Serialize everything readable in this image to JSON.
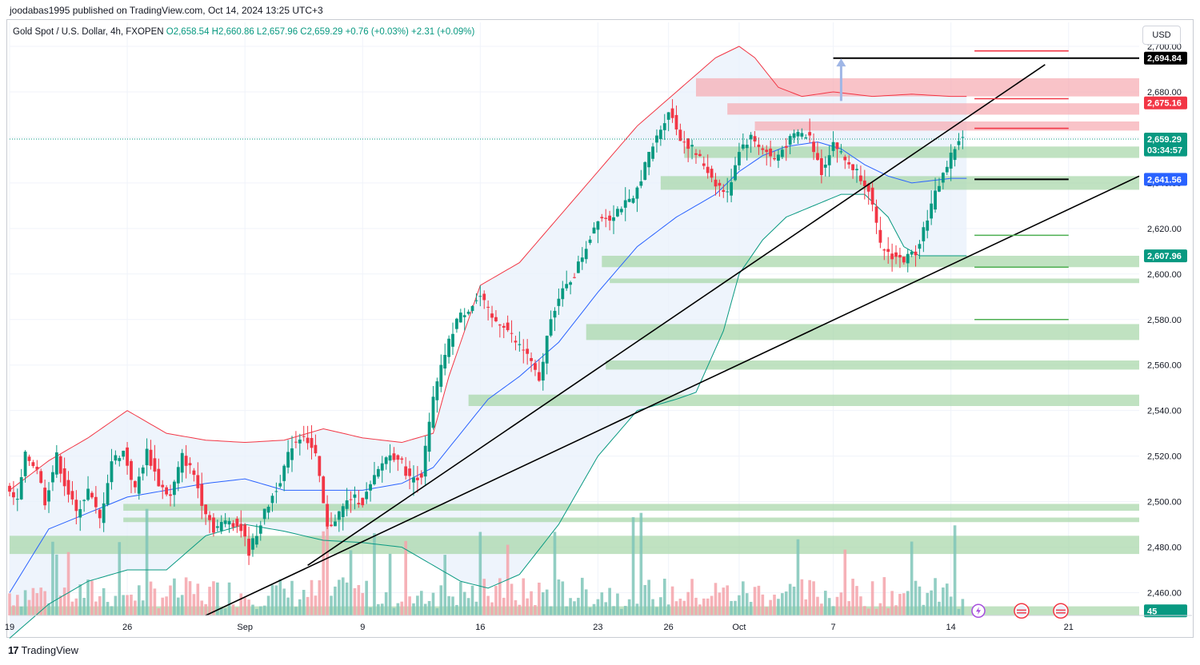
{
  "header": {
    "published_by": "joodabas1995 published on TradingView.com, Oct 14, 2024 13:25 UTC+3"
  },
  "legend": {
    "symbol": "Gold Spot / U.S. Dollar, 4h, FXOPEN",
    "ohlc": "O2,658.54  H2,660.86  L2,657.96  C2,659.29",
    "change": "+0.76 (+0.03%)  +2.31 (+0.09%)"
  },
  "currency_button": "USD",
  "footer": {
    "brand": "TradingView",
    "brand_mark": "17"
  },
  "colors": {
    "up": "#089981",
    "down": "#f23645",
    "bb_upper": "#f23645",
    "bb_lower": "#089981",
    "bb_basis": "#2962ff",
    "bb_fill": "#e8f0fb",
    "zone_green": "#a5d6a7",
    "zone_red": "#f7a9b1",
    "trendline": "#000000",
    "last_price": "#089981"
  },
  "chart_data": {
    "type": "candlestick",
    "symbol": "XAUUSD",
    "timeframe": "4h",
    "ylim": [
      2450,
      2700
    ],
    "y_ticks": [
      2460,
      2480,
      2500,
      2520,
      2540,
      2560,
      2580,
      2600,
      2620,
      2640,
      2660,
      2680,
      2700
    ],
    "y_tick_labels": [
      "2,460.00",
      "2,480.00",
      "2,500.00",
      "2,520.00",
      "2,540.00",
      "2,560.00",
      "2,580.00",
      "2,600.00",
      "2,620.00",
      "2,640.00",
      "2,660.00",
      "2,680.00",
      "2,700.00"
    ],
    "x_ticks": [
      {
        "label": "19",
        "bar": 0
      },
      {
        "label": "26",
        "bar": 30
      },
      {
        "label": "Sep",
        "bar": 60
      },
      {
        "label": "9",
        "bar": 90
      },
      {
        "label": "16",
        "bar": 120
      },
      {
        "label": "23",
        "bar": 150
      },
      {
        "label": "26",
        "bar": 168
      },
      {
        "label": "Oct",
        "bar": 186
      },
      {
        "label": "7",
        "bar": 210
      },
      {
        "label": "14",
        "bar": 240
      },
      {
        "label": "21",
        "bar": 270
      }
    ],
    "bars_total_span": 288,
    "bar_count": 244,
    "anchors": [
      [
        0,
        2505
      ],
      [
        3,
        2500
      ],
      [
        5,
        2520
      ],
      [
        8,
        2515
      ],
      [
        10,
        2500
      ],
      [
        13,
        2520
      ],
      [
        15,
        2508
      ],
      [
        18,
        2495
      ],
      [
        21,
        2505
      ],
      [
        24,
        2492
      ],
      [
        27,
        2518
      ],
      [
        30,
        2522
      ],
      [
        33,
        2505
      ],
      [
        36,
        2522
      ],
      [
        39,
        2508
      ],
      [
        42,
        2502
      ],
      [
        45,
        2520
      ],
      [
        48,
        2512
      ],
      [
        50,
        2500
      ],
      [
        53,
        2488
      ],
      [
        57,
        2492
      ],
      [
        60,
        2488
      ],
      [
        62,
        2478
      ],
      [
        66,
        2495
      ],
      [
        70,
        2510
      ],
      [
        73,
        2525
      ],
      [
        76,
        2530
      ],
      [
        79,
        2520
      ],
      [
        82,
        2488
      ],
      [
        85,
        2495
      ],
      [
        88,
        2502
      ],
      [
        91,
        2500
      ],
      [
        94,
        2510
      ],
      [
        97,
        2520
      ],
      [
        100,
        2520
      ],
      [
        103,
        2510
      ],
      [
        106,
        2512
      ],
      [
        109,
        2545
      ],
      [
        112,
        2565
      ],
      [
        115,
        2580
      ],
      [
        118,
        2585
      ],
      [
        121,
        2590
      ],
      [
        124,
        2580
      ],
      [
        127,
        2578
      ],
      [
        130,
        2570
      ],
      [
        133,
        2565
      ],
      [
        136,
        2552
      ],
      [
        139,
        2582
      ],
      [
        142,
        2592
      ],
      [
        145,
        2600
      ],
      [
        148,
        2612
      ],
      [
        151,
        2625
      ],
      [
        154,
        2625
      ],
      [
        157,
        2630
      ],
      [
        160,
        2632
      ],
      [
        163,
        2648
      ],
      [
        166,
        2660
      ],
      [
        169,
        2672
      ],
      [
        172,
        2660
      ],
      [
        175,
        2655
      ],
      [
        178,
        2648
      ],
      [
        181,
        2640
      ],
      [
        184,
        2635
      ],
      [
        187,
        2655
      ],
      [
        190,
        2660
      ],
      [
        193,
        2655
      ],
      [
        196,
        2650
      ],
      [
        199,
        2657
      ],
      [
        202,
        2662
      ],
      [
        205,
        2660
      ],
      [
        208,
        2645
      ],
      [
        211,
        2658
      ],
      [
        214,
        2650
      ],
      [
        217,
        2645
      ],
      [
        220,
        2638
      ],
      [
        223,
        2612
      ],
      [
        226,
        2608
      ],
      [
        229,
        2606
      ],
      [
        232,
        2610
      ],
      [
        235,
        2625
      ],
      [
        238,
        2640
      ],
      [
        241,
        2652
      ],
      [
        243,
        2659
      ]
    ],
    "bollinger_bands": {
      "period_visible": true,
      "upper_anchors": [
        [
          0,
          2505
        ],
        [
          10,
          2518
        ],
        [
          20,
          2528
        ],
        [
          30,
          2540
        ],
        [
          40,
          2530
        ],
        [
          50,
          2527
        ],
        [
          60,
          2526
        ],
        [
          70,
          2527
        ],
        [
          80,
          2532
        ],
        [
          90,
          2528
        ],
        [
          100,
          2526
        ],
        [
          108,
          2530
        ],
        [
          112,
          2555
        ],
        [
          120,
          2595
        ],
        [
          130,
          2605
        ],
        [
          140,
          2625
        ],
        [
          150,
          2645
        ],
        [
          160,
          2665
        ],
        [
          170,
          2680
        ],
        [
          180,
          2695
        ],
        [
          186,
          2700
        ],
        [
          190,
          2695
        ],
        [
          196,
          2682
        ],
        [
          202,
          2678
        ],
        [
          210,
          2680
        ],
        [
          220,
          2678
        ],
        [
          230,
          2679
        ],
        [
          240,
          2678
        ],
        [
          244,
          2678
        ]
      ],
      "lower_anchors": [
        [
          0,
          2440
        ],
        [
          10,
          2455
        ],
        [
          20,
          2465
        ],
        [
          30,
          2470
        ],
        [
          40,
          2470
        ],
        [
          50,
          2485
        ],
        [
          60,
          2490
        ],
        [
          70,
          2487
        ],
        [
          80,
          2483
        ],
        [
          90,
          2482
        ],
        [
          100,
          2480
        ],
        [
          108,
          2472
        ],
        [
          115,
          2465
        ],
        [
          122,
          2462
        ],
        [
          130,
          2468
        ],
        [
          140,
          2490
        ],
        [
          150,
          2520
        ],
        [
          160,
          2540
        ],
        [
          170,
          2545
        ],
        [
          175,
          2548
        ],
        [
          182,
          2575
        ],
        [
          186,
          2600
        ],
        [
          192,
          2615
        ],
        [
          198,
          2625
        ],
        [
          205,
          2630
        ],
        [
          212,
          2635
        ],
        [
          218,
          2635
        ],
        [
          224,
          2625
        ],
        [
          228,
          2612
        ],
        [
          232,
          2608
        ],
        [
          240,
          2608
        ],
        [
          244,
          2608
        ]
      ],
      "basis_anchors": [
        [
          0,
          2460
        ],
        [
          10,
          2488
        ],
        [
          20,
          2495
        ],
        [
          30,
          2502
        ],
        [
          40,
          2505
        ],
        [
          50,
          2508
        ],
        [
          60,
          2510
        ],
        [
          70,
          2505
        ],
        [
          80,
          2505
        ],
        [
          90,
          2505
        ],
        [
          100,
          2508
        ],
        [
          108,
          2515
        ],
        [
          115,
          2530
        ],
        [
          122,
          2545
        ],
        [
          130,
          2555
        ],
        [
          140,
          2570
        ],
        [
          150,
          2592
        ],
        [
          160,
          2612
        ],
        [
          170,
          2625
        ],
        [
          180,
          2635
        ],
        [
          186,
          2645
        ],
        [
          192,
          2652
        ],
        [
          198,
          2656
        ],
        [
          206,
          2658
        ],
        [
          212,
          2655
        ],
        [
          218,
          2648
        ],
        [
          224,
          2643
        ],
        [
          230,
          2640
        ],
        [
          240,
          2642
        ],
        [
          244,
          2642
        ]
      ]
    },
    "zones": [
      {
        "type": "resistance",
        "from_bar": 175,
        "low": 2678,
        "high": 2686
      },
      {
        "type": "resistance",
        "from_bar": 183,
        "low": 2670,
        "high": 2675
      },
      {
        "type": "resistance",
        "from_bar": 190,
        "low": 2663,
        "high": 2667
      },
      {
        "type": "support",
        "from_bar": 172,
        "low": 2651,
        "high": 2656
      },
      {
        "type": "support",
        "from_bar": 166,
        "low": 2637,
        "high": 2643
      },
      {
        "type": "support",
        "from_bar": 151,
        "low": 2603,
        "high": 2608
      },
      {
        "type": "support",
        "from_bar": 153,
        "low": 2596,
        "high": 2598
      },
      {
        "type": "support",
        "from_bar": 147,
        "low": 2571,
        "high": 2578
      },
      {
        "type": "support",
        "from_bar": 152,
        "low": 2558,
        "high": 2562
      },
      {
        "type": "support",
        "from_bar": 117,
        "low": 2542,
        "high": 2547
      },
      {
        "type": "support",
        "from_bar": 29,
        "low": 2496,
        "high": 2499
      },
      {
        "type": "support",
        "from_bar": 29,
        "low": 2491,
        "high": 2493
      },
      {
        "type": "support",
        "from_bar": 0,
        "low": 2477,
        "high": 2485
      },
      {
        "type": "support",
        "from_bar": 0,
        "low": 2450,
        "high": 2454
      }
    ],
    "target_levels": [
      {
        "price": 2698,
        "color": "red",
        "from_bar": 246,
        "to_bar": 270
      },
      {
        "price": 2677,
        "color": "red",
        "from_bar": 246,
        "to_bar": 270
      },
      {
        "price": 2664,
        "color": "red",
        "from_bar": 246,
        "to_bar": 270
      },
      {
        "price": 2694.84,
        "color": "black",
        "from_bar": 210,
        "to_bar": 288
      },
      {
        "price": 2641.56,
        "color": "black",
        "from_bar": 246,
        "to_bar": 270
      },
      {
        "price": 2617,
        "color": "green",
        "from_bar": 246,
        "to_bar": 270
      },
      {
        "price": 2603,
        "color": "green",
        "from_bar": 246,
        "to_bar": 270
      },
      {
        "price": 2580,
        "color": "green",
        "from_bar": 246,
        "to_bar": 270
      }
    ],
    "trendlines": [
      {
        "x1_bar": 76,
        "y1": 2472,
        "x2_bar": 264,
        "y2": 2692
      },
      {
        "x1_bar": 50,
        "y1": 2450,
        "x2_bar": 288,
        "y2": 2643
      }
    ],
    "price_labels": [
      {
        "text": "2,700.00",
        "price": 2700,
        "style": "tick"
      },
      {
        "text": "2,694.84",
        "price": 2694.84,
        "style": "black"
      },
      {
        "text": "2,675.16",
        "price": 2675.16,
        "style": "red"
      },
      {
        "text": "2,659.29",
        "price": 2659.29,
        "style": "last"
      },
      {
        "text": "03:34:57",
        "price": 2654.5,
        "style": "last"
      },
      {
        "text": "2,641.56",
        "price": 2641.56,
        "style": "blue"
      },
      {
        "text": "2,607.96",
        "price": 2607.96,
        "style": "green"
      },
      {
        "text": "45",
        "price": 2452,
        "style": "green"
      }
    ],
    "last_price": 2659.29,
    "countdown": "03:34:57",
    "volume_label": "45"
  }
}
